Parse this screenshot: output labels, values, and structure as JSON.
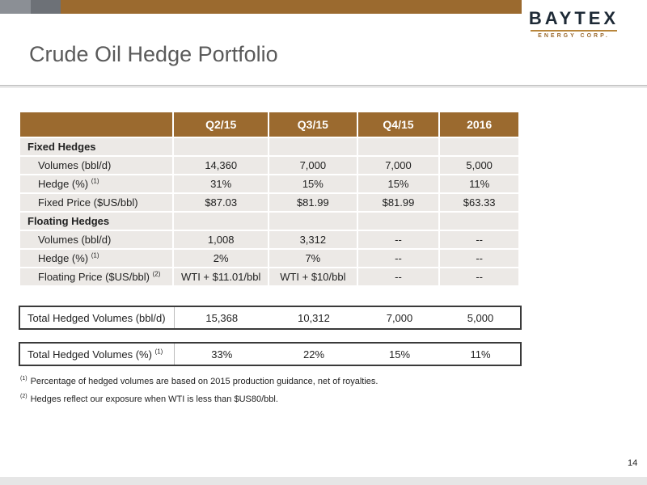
{
  "header": {
    "title": "Crude Oil Hedge Portfolio",
    "logo_brand": "BAYTEX",
    "logo_sub": "ENERGY CORP."
  },
  "colors": {
    "accent": "#9b6a2f",
    "row_bg": "#ece9e6",
    "grey1": "#8b8f95",
    "grey2": "#6d7177"
  },
  "table": {
    "columns": [
      "",
      "Q2/15",
      "Q3/15",
      "Q4/15",
      "2016"
    ],
    "fixed_section": "Fixed Hedges",
    "fixed_rows": [
      {
        "label": "Volumes (bbl/d)",
        "sup": "",
        "values": [
          "14,360",
          "7,000",
          "7,000",
          "5,000"
        ]
      },
      {
        "label": "Hedge (%)",
        "sup": "(1)",
        "values": [
          "31%",
          "15%",
          "15%",
          "11%"
        ]
      },
      {
        "label": "Fixed Price ($US/bbl)",
        "sup": "",
        "values": [
          "$87.03",
          "$81.99",
          "$81.99",
          "$63.33"
        ]
      }
    ],
    "floating_section": "Floating Hedges",
    "floating_rows": [
      {
        "label": "Volumes (bbl/d)",
        "sup": "",
        "values": [
          "1,008",
          "3,312",
          "--",
          "--"
        ]
      },
      {
        "label": "Hedge (%)",
        "sup": "(1)",
        "values": [
          "2%",
          "7%",
          "--",
          "--"
        ]
      },
      {
        "label": "Floating Price ($US/bbl)",
        "sup": "(2)",
        "values": [
          "WTI + $11.01/bbl",
          "WTI + $10/bbl",
          "--",
          "--"
        ]
      }
    ]
  },
  "totals": [
    {
      "label": "Total Hedged Volumes (bbl/d)",
      "sup": "",
      "values": [
        "15,368",
        "10,312",
        "7,000",
        "5,000"
      ]
    },
    {
      "label": "Total Hedged Volumes (%)",
      "sup": "(1)",
      "values": [
        "33%",
        "22%",
        "15%",
        "11%"
      ]
    }
  ],
  "footnotes": [
    {
      "marker": "(1)",
      "text": "Percentage of hedged volumes are based on 2015 production guidance, net of royalties."
    },
    {
      "marker": "(2)",
      "text": "Hedges reflect our exposure when WTI is less than $US80/bbl."
    }
  ],
  "page_number": "14"
}
